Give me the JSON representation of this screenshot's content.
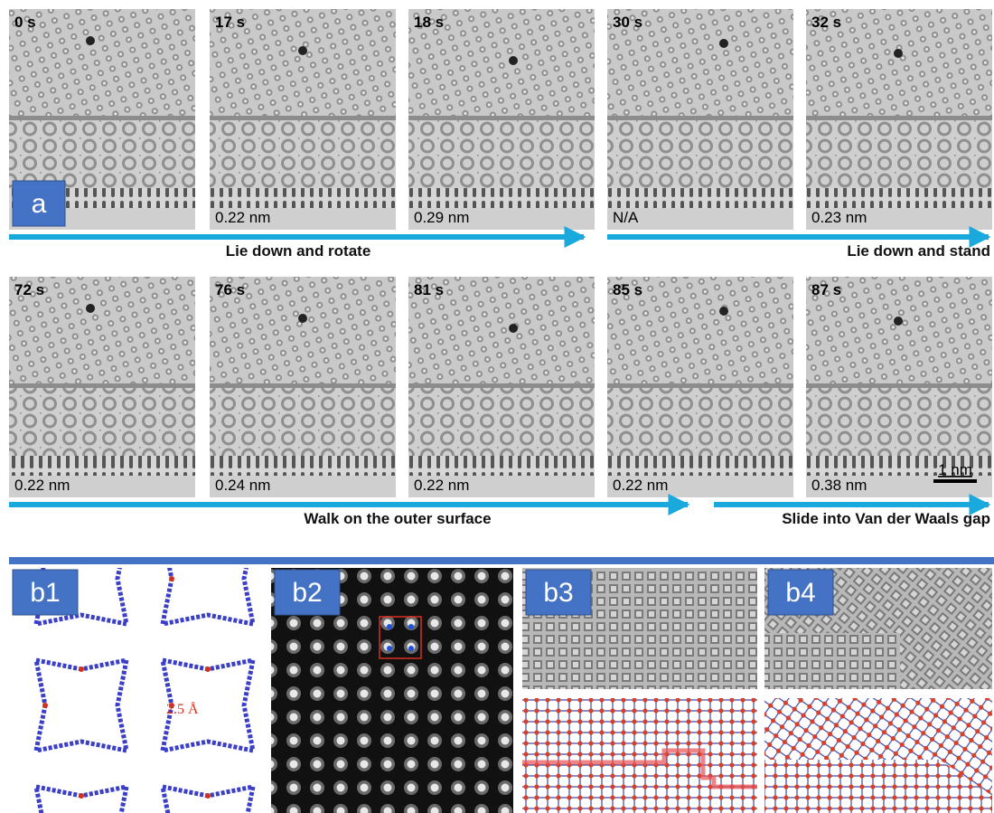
{
  "panel_a": {
    "label": "a",
    "rows": [
      {
        "frames": [
          {
            "time": "0 s"
          },
          {
            "time": "17 s",
            "distance": "0.22 nm"
          },
          {
            "time": "18 s",
            "distance": "0.29 nm"
          },
          {
            "time": "30 s",
            "distance": "N/A"
          },
          {
            "time": "32 s",
            "distance": "0.23 nm"
          }
        ],
        "arrows": [
          "Lie down and rotate",
          "Lie down and stand"
        ]
      },
      {
        "frames": [
          {
            "time": "72 s",
            "distance": "0.22 nm"
          },
          {
            "time": "76 s",
            "distance": "0.24 nm"
          },
          {
            "time": "81 s",
            "distance": "0.22 nm"
          },
          {
            "time": "85 s",
            "distance": "0.22 nm"
          },
          {
            "time": "87 s",
            "distance": "0.38 nm"
          }
        ],
        "arrows": [
          "Walk on the outer surface",
          "Slide into Van der Waals gap"
        ]
      }
    ],
    "scale_bar": "1 nm"
  },
  "panel_b": {
    "labels": [
      "b1",
      "b2",
      "b3",
      "b4"
    ],
    "annotation": "2.5 Å"
  }
}
